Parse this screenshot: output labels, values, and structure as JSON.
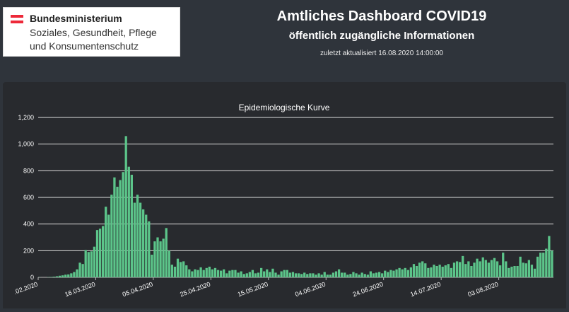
{
  "logo": {
    "flag_colors": [
      "#ed2939",
      "#ffffff",
      "#ed2939"
    ],
    "line1": "Bundesministerium",
    "line2": "Soziales, Gesundheit, Pflege",
    "line3": "und Konsumentenschutz"
  },
  "header": {
    "title": "Amtliches Dashboard COVID19",
    "subtitle": "öffentlich zugängliche Informationen",
    "updated": "zuletzt aktualisiert 16.08.2020 14:00:00"
  },
  "chart_data": {
    "type": "bar",
    "title": "Epidemiologische Kurve",
    "xlabel": "",
    "ylabel": "",
    "ylim": [
      0,
      1200
    ],
    "yticks": [
      0,
      200,
      400,
      600,
      800,
      1000,
      1200
    ],
    "ytick_labels": [
      "0",
      "200",
      "400",
      "600",
      "800",
      "1,000",
      "1,200"
    ],
    "xtick_labels": [
      ".02.2020",
      "16.03.2020",
      "05.04.2020",
      "25.04.2020",
      "15.05.2020",
      "04.06.2020",
      "24.06.2020",
      "14.07.2020",
      "03.08.2020"
    ],
    "xtick_day_index": [
      0,
      20,
      40,
      60,
      80,
      100,
      120,
      140,
      160
    ],
    "grid": true,
    "bar_color": "#5cc58a",
    "values": [
      1,
      0,
      0,
      2,
      3,
      5,
      8,
      12,
      15,
      20,
      22,
      30,
      40,
      60,
      110,
      100,
      205,
      190,
      195,
      230,
      355,
      365,
      385,
      530,
      470,
      620,
      750,
      680,
      730,
      790,
      1060,
      830,
      770,
      560,
      620,
      560,
      510,
      470,
      420,
      170,
      270,
      300,
      270,
      290,
      370,
      200,
      95,
      80,
      140,
      115,
      120,
      90,
      60,
      45,
      60,
      55,
      75,
      55,
      70,
      80,
      60,
      70,
      55,
      50,
      60,
      30,
      50,
      55,
      55,
      35,
      45,
      25,
      30,
      40,
      55,
      30,
      35,
      70,
      45,
      60,
      40,
      65,
      35,
      20,
      45,
      55,
      55,
      35,
      40,
      30,
      30,
      25,
      35,
      25,
      30,
      30,
      20,
      30,
      20,
      40,
      20,
      20,
      35,
      45,
      60,
      35,
      35,
      20,
      25,
      40,
      30,
      20,
      35,
      25,
      20,
      45,
      30,
      35,
      40,
      30,
      50,
      40,
      55,
      50,
      60,
      70,
      60,
      70,
      55,
      75,
      100,
      85,
      110,
      120,
      105,
      70,
      75,
      95,
      85,
      95,
      80,
      90,
      100,
      70,
      110,
      120,
      115,
      160,
      100,
      120,
      85,
      110,
      140,
      120,
      150,
      130,
      110,
      130,
      145,
      120,
      90,
      185,
      120,
      70,
      80,
      85,
      85,
      155,
      110,
      105,
      130,
      95,
      65,
      155,
      185,
      185,
      215,
      310,
      200
    ]
  }
}
